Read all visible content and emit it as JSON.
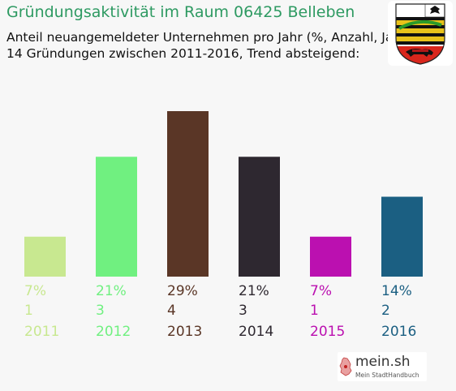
{
  "header": {
    "title": "Gründungsaktivität im Raum 06425 Belleben",
    "subtitle_line1": "Anteil neuangemeldeter Unternehmen pro Jahr (%, Anzahl, Jahr)",
    "subtitle_line2": "14 Gründungen zwischen 2011-2016, Trend absteigend:"
  },
  "crest": {
    "icon": "coat-of-arms-saxony-anhalt-icon"
  },
  "brand": {
    "name": "mein.sh",
    "tagline": "Mein StadtHandbuch",
    "icon": "germany-map-icon"
  },
  "colors": {
    "title": "#2e9a62",
    "background": "#f7f7f7"
  },
  "chart_data": {
    "type": "bar",
    "categories": [
      "2011",
      "2012",
      "2013",
      "2014",
      "2015",
      "2016"
    ],
    "values": [
      7,
      21,
      29,
      21,
      7,
      14
    ],
    "value_labels": [
      "7%",
      "21%",
      "29%",
      "21%",
      "7%",
      "14%"
    ],
    "counts": [
      "1",
      "3",
      "4",
      "3",
      "1",
      "2"
    ],
    "colors": [
      "#c8e890",
      "#70f080",
      "#5a3626",
      "#2e2830",
      "#bb10b0",
      "#1b5f82"
    ],
    "title": "Gründungsaktivität im Raum 06425 Belleben",
    "xlabel": "",
    "ylabel": "",
    "ylim": [
      0,
      29
    ],
    "grid": false,
    "legend": "none"
  }
}
